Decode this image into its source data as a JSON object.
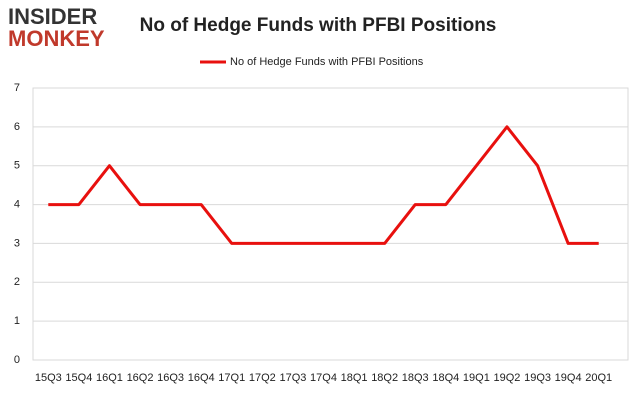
{
  "logo": {
    "line1": "INSIDER",
    "line2": "MONKEY"
  },
  "chart_data": {
    "type": "line",
    "title": "No of Hedge Funds with PFBI Positions",
    "categories": [
      "15Q3",
      "15Q4",
      "16Q1",
      "16Q2",
      "16Q3",
      "16Q4",
      "17Q1",
      "17Q2",
      "17Q3",
      "17Q4",
      "18Q1",
      "18Q2",
      "18Q3",
      "18Q4",
      "19Q1",
      "19Q2",
      "19Q3",
      "19Q4",
      "20Q1"
    ],
    "series": [
      {
        "name": "No of Hedge Funds with PFBI Positions",
        "color": "#e8100e",
        "values": [
          4,
          4,
          5,
          4,
          4,
          4,
          3,
          3,
          3,
          3,
          3,
          3,
          4,
          4,
          5,
          6,
          5,
          3,
          3
        ]
      }
    ],
    "ylim": [
      0,
      7
    ],
    "yticks": [
      0,
      1,
      2,
      3,
      4,
      5,
      6,
      7
    ],
    "grid": true,
    "legend": "top"
  }
}
